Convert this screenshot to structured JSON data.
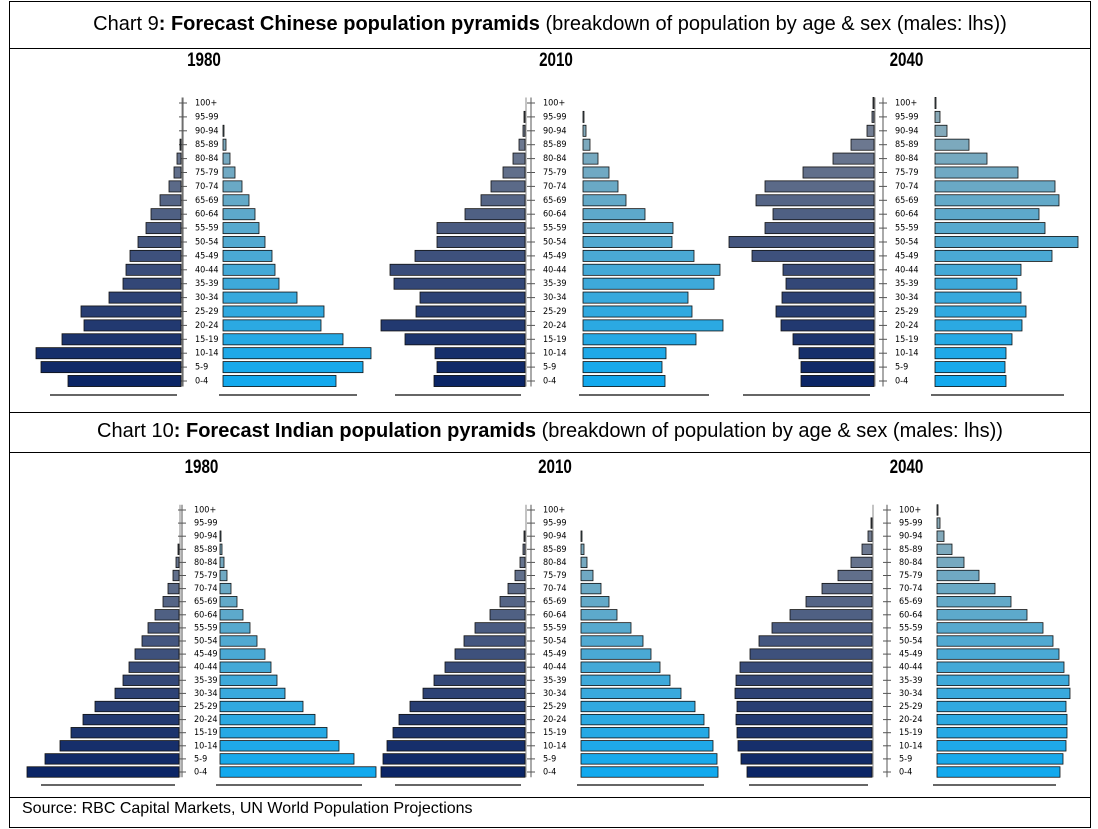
{
  "headers": [
    {
      "label": "Chart 9",
      "title": ": Forecast Chinese population pyramids",
      "note": "(breakdown of population by age & sex (males: lhs))"
    },
    {
      "label": "Chart 10",
      "title": ": Forecast Indian population pyramids",
      "note": "(breakdown of population by age & sex (males: lhs))"
    }
  ],
  "source": "Source: RBC Capital Markets, UN World Population Projections",
  "chart_data": [
    {
      "type": "pyramid",
      "title": "1980",
      "categories": [
        "100+",
        "95-99",
        "90-94",
        "85-89",
        "80-84",
        "75-79",
        "70-74",
        "65-69",
        "60-64",
        "55-59",
        "50-54",
        "45-49",
        "40-44",
        "35-39",
        "30-34",
        "25-29",
        "20-24",
        "15-19",
        "10-14",
        "5-9",
        "0-4"
      ],
      "series": [
        {
          "color": [
            "#7d8797",
            "#0b2566"
          ],
          "values": [
            0,
            0,
            0,
            1,
            4,
            7,
            12,
            21,
            30,
            35,
            43,
            51,
            55,
            58,
            72,
            100,
            97,
            119,
            145,
            140,
            113
          ]
        },
        {
          "color": [
            "#8fa9b4",
            "#12a9ee"
          ],
          "values": [
            0,
            0,
            1,
            3,
            7,
            12,
            19,
            26,
            32,
            36,
            42,
            49,
            52,
            56,
            74,
            101,
            98,
            120,
            148,
            140,
            113
          ]
        }
      ]
    },
    {
      "type": "pyramid",
      "title": "2010",
      "categories": [
        "100+",
        "95-99",
        "90-94",
        "85-89",
        "80-84",
        "75-79",
        "70-74",
        "65-69",
        "60-64",
        "55-59",
        "50-54",
        "45-49",
        "40-44",
        "35-39",
        "30-34",
        "25-29",
        "20-24",
        "15-19",
        "10-14",
        "5-9",
        "0-4"
      ],
      "series": [
        {
          "color": [
            "#7d8797",
            "#0b2566"
          ],
          "values": [
            0,
            1,
            2,
            6,
            12,
            22,
            34,
            44,
            60,
            88,
            88,
            110,
            135,
            131,
            105,
            109,
            144,
            120,
            90,
            88,
            91
          ]
        },
        {
          "color": [
            "#8fa9b4",
            "#12a9ee"
          ],
          "values": [
            0,
            1,
            3,
            7,
            15,
            26,
            35,
            43,
            62,
            90,
            89,
            111,
            137,
            131,
            105,
            109,
            140,
            113,
            83,
            79,
            82
          ]
        }
      ]
    },
    {
      "type": "pyramid",
      "title": "2040",
      "categories": [
        "100+",
        "95-99",
        "90-94",
        "85-89",
        "80-84",
        "75-79",
        "70-74",
        "65-69",
        "60-64",
        "55-59",
        "50-54",
        "45-49",
        "40-44",
        "35-39",
        "30-34",
        "25-29",
        "20-24",
        "15-19",
        "10-14",
        "5-9",
        "0-4"
      ],
      "series": [
        {
          "color": [
            "#7d8797",
            "#0b2566"
          ],
          "values": [
            1,
            2,
            7,
            23,
            41,
            71,
            109,
            118,
            101,
            109,
            145,
            122,
            91,
            88,
            92,
            98,
            93,
            81,
            75,
            73,
            73
          ]
        },
        {
          "color": [
            "#8fa9b4",
            "#12a9ee"
          ],
          "values": [
            1,
            5,
            12,
            34,
            52,
            83,
            120,
            124,
            104,
            110,
            143,
            117,
            86,
            82,
            86,
            91,
            87,
            77,
            71,
            70,
            71
          ]
        }
      ]
    },
    {
      "type": "pyramid",
      "title": "1980",
      "categories": [
        "100+",
        "95-99",
        "90-94",
        "85-89",
        "80-84",
        "75-79",
        "70-74",
        "65-69",
        "60-64",
        "55-59",
        "50-54",
        "45-49",
        "40-44",
        "35-39",
        "30-34",
        "25-29",
        "20-24",
        "15-19",
        "10-14",
        "5-9",
        "0-4"
      ],
      "series": [
        {
          "color": [
            "#7d8797",
            "#0b2566"
          ],
          "values": [
            0,
            0,
            0,
            1,
            3,
            6,
            11,
            16,
            24,
            31,
            37,
            44,
            50,
            56,
            64,
            84,
            96,
            108,
            119,
            134,
            152
          ]
        },
        {
          "color": [
            "#8fa9b4",
            "#12a9ee"
          ],
          "values": [
            0,
            0,
            1,
            2,
            4,
            7,
            11,
            17,
            23,
            30,
            37,
            45,
            51,
            57,
            65,
            83,
            95,
            107,
            119,
            134,
            156
          ]
        }
      ]
    },
    {
      "type": "pyramid",
      "title": "2010",
      "categories": [
        "100+",
        "95-99",
        "90-94",
        "85-89",
        "80-84",
        "75-79",
        "70-74",
        "65-69",
        "60-64",
        "55-59",
        "50-54",
        "45-49",
        "40-44",
        "35-39",
        "30-34",
        "25-29",
        "20-24",
        "15-19",
        "10-14",
        "5-9",
        "0-4"
      ],
      "series": [
        {
          "color": [
            "#7d8797",
            "#0b2566"
          ],
          "values": [
            0,
            0,
            1,
            2,
            5,
            10,
            17,
            25,
            35,
            50,
            61,
            70,
            80,
            91,
            102,
            115,
            126,
            132,
            138,
            142,
            144
          ]
        },
        {
          "color": [
            "#8fa9b4",
            "#12a9ee"
          ],
          "values": [
            0,
            0,
            1,
            3,
            6,
            12,
            20,
            28,
            36,
            50,
            62,
            70,
            79,
            89,
            100,
            114,
            123,
            128,
            132,
            136,
            137
          ]
        }
      ]
    },
    {
      "type": "pyramid",
      "title": "2040",
      "categories": [
        "100+",
        "95-99",
        "90-94",
        "85-89",
        "80-84",
        "75-79",
        "70-74",
        "65-69",
        "60-64",
        "55-59",
        "50-54",
        "45-49",
        "40-44",
        "35-39",
        "30-34",
        "25-29",
        "20-24",
        "15-19",
        "10-14",
        "5-9",
        "0-4"
      ],
      "series": [
        {
          "color": [
            "#7d8797",
            "#0b2566"
          ],
          "values": [
            0,
            1,
            4,
            10,
            21,
            34,
            50,
            66,
            82,
            100,
            113,
            122,
            132,
            136,
            137,
            135,
            136,
            135,
            134,
            131,
            125
          ]
        },
        {
          "color": [
            "#8fa9b4",
            "#12a9ee"
          ],
          "values": [
            1,
            3,
            7,
            15,
            27,
            42,
            58,
            74,
            90,
            106,
            116,
            122,
            127,
            132,
            133,
            129,
            130,
            130,
            129,
            126,
            123
          ]
        }
      ]
    }
  ]
}
